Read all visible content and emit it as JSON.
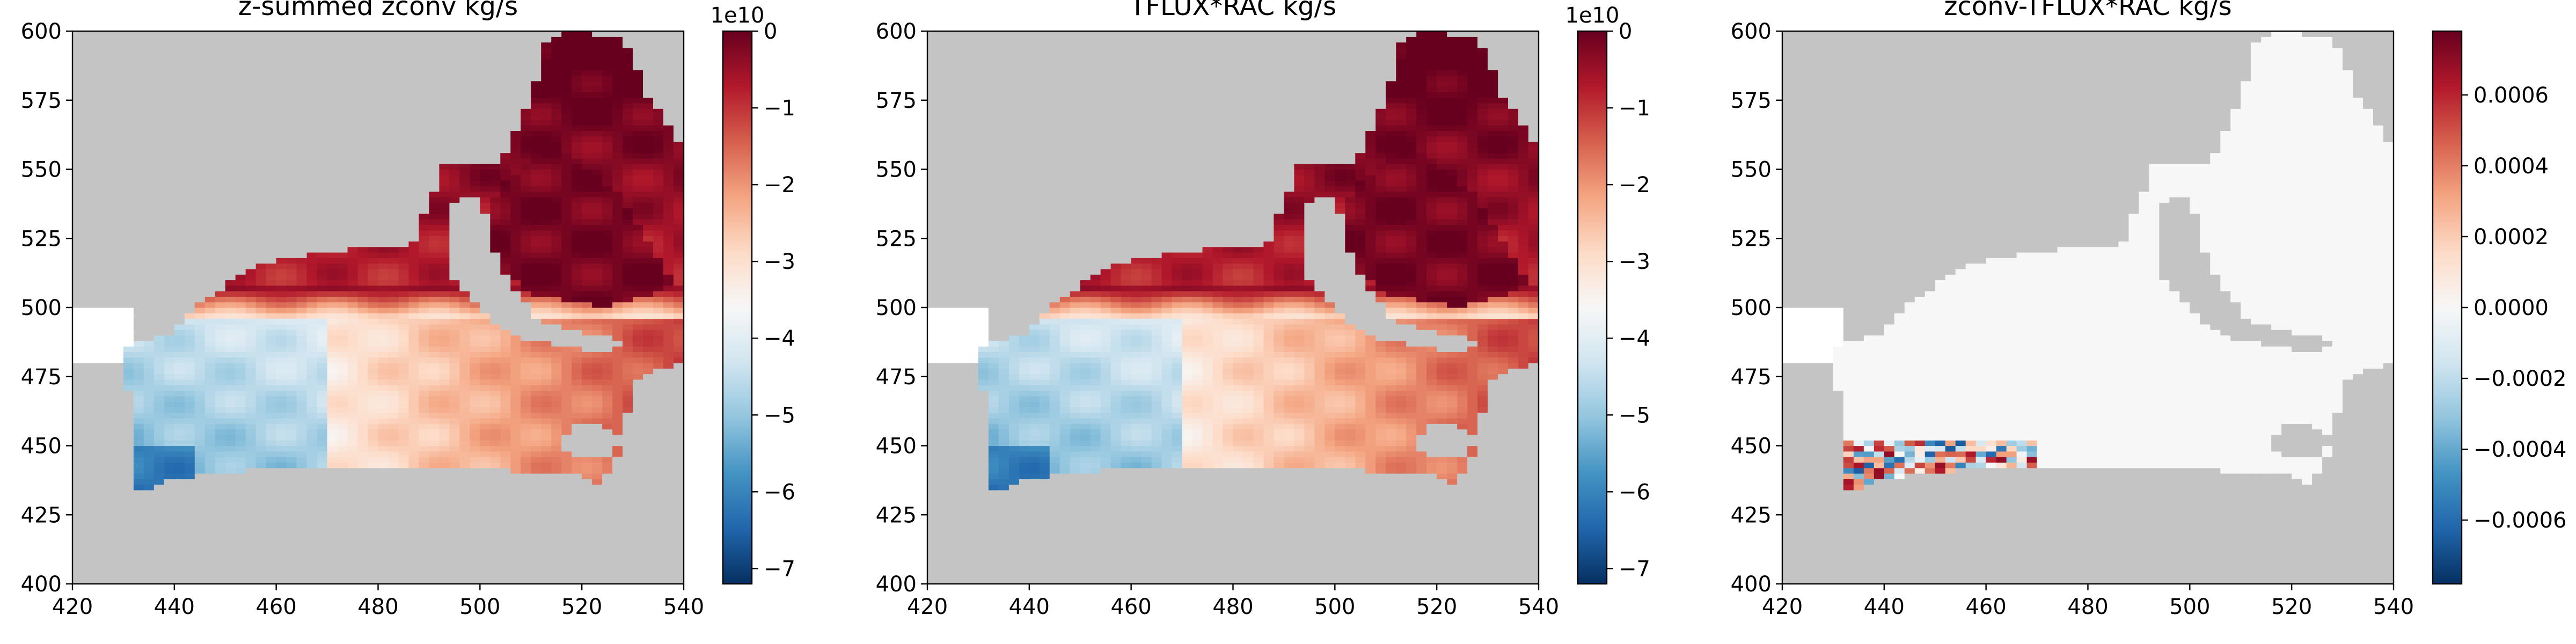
{
  "chart_data": [
    {
      "type": "heatmap",
      "title": "z-summed zconv kg/s",
      "x_ticks": [
        420,
        440,
        460,
        480,
        500,
        520,
        540
      ],
      "y_ticks": [
        400,
        425,
        450,
        475,
        500,
        525,
        550,
        575,
        600
      ],
      "xlim": [
        420,
        540
      ],
      "ylim": [
        400,
        600
      ],
      "colormap": "RdBu_r",
      "land_color": "#c4c4c4",
      "colorbar": {
        "ticks": [
          0,
          -1,
          -2,
          -3,
          -4,
          -5,
          -6,
          -7
        ],
        "tick_labels": [
          "0",
          "−1",
          "−2",
          "−3",
          "−4",
          "−5",
          "−6",
          "−7"
        ],
        "range": [
          -7.2,
          0
        ],
        "multiplier": "1e10"
      },
      "field": "mass_convergence"
    },
    {
      "type": "heatmap",
      "title": "TFLUX*RAC kg/s",
      "x_ticks": [
        420,
        440,
        460,
        480,
        500,
        520,
        540
      ],
      "y_ticks": [
        400,
        425,
        450,
        475,
        500,
        525,
        550,
        575,
        600
      ],
      "xlim": [
        420,
        540
      ],
      "ylim": [
        400,
        600
      ],
      "colormap": "RdBu_r",
      "land_color": "#c4c4c4",
      "colorbar": {
        "ticks": [
          0,
          -1,
          -2,
          -3,
          -4,
          -5,
          -6,
          -7
        ],
        "tick_labels": [
          "0",
          "−1",
          "−2",
          "−3",
          "−4",
          "−5",
          "−6",
          "−7"
        ],
        "range": [
          -7.2,
          0
        ],
        "multiplier": "1e10"
      },
      "field": "mass_convergence"
    },
    {
      "type": "heatmap",
      "title": "zconv-TFLUX*RAC kg/s",
      "x_ticks": [
        420,
        440,
        460,
        480,
        500,
        520,
        540
      ],
      "y_ticks": [
        400,
        425,
        450,
        475,
        500,
        525,
        550,
        575,
        600
      ],
      "xlim": [
        420,
        540
      ],
      "ylim": [
        400,
        600
      ],
      "colormap": "RdBu_r",
      "land_color": "#c4c4c4",
      "colorbar": {
        "ticks": [
          0.0006,
          0.0004,
          0.0002,
          0,
          -0.0002,
          -0.0004,
          -0.0006
        ],
        "tick_labels": [
          "0.0006",
          "0.0004",
          "0.0002",
          "0.0000",
          "−0.0002",
          "−0.0004",
          "−0.0006"
        ],
        "range": [
          -0.00078,
          0.00078
        ],
        "multiplier": ""
      },
      "field": "difference"
    }
  ]
}
